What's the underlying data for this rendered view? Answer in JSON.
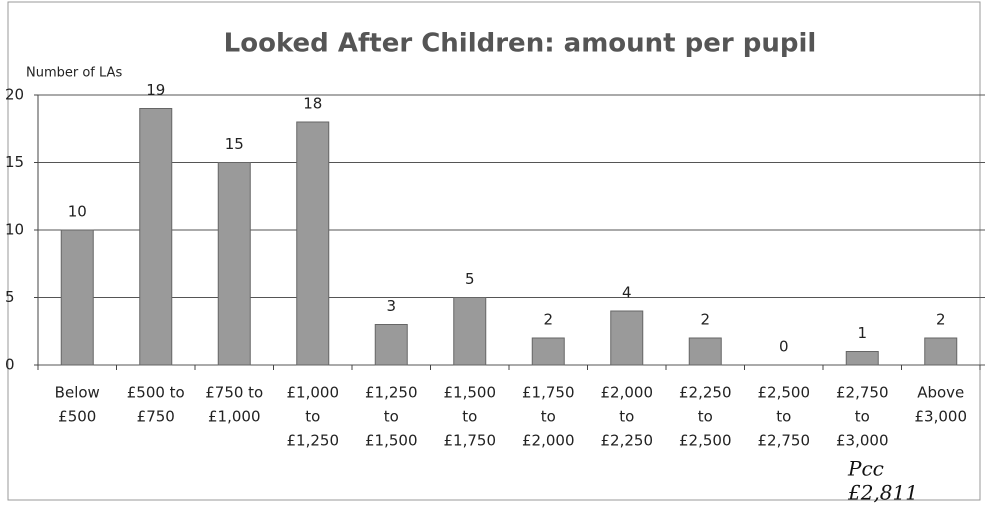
{
  "chart_data": {
    "type": "bar",
    "title": "Looked After Children: amount per pupil",
    "y_label": "Number of LAs",
    "categories": [
      [
        "Below",
        "£500"
      ],
      [
        "£500 to",
        "£750"
      ],
      [
        "£750 to",
        "£1,000"
      ],
      [
        "£1,000",
        "to",
        "£1,250"
      ],
      [
        "£1,250",
        "to",
        "£1,500"
      ],
      [
        "£1,500",
        "to",
        "£1,750"
      ],
      [
        "£1,750",
        "to",
        "£2,000"
      ],
      [
        "£2,000",
        "to",
        "£2,250"
      ],
      [
        "£2,250",
        "to",
        "£2,500"
      ],
      [
        "£2,500",
        "to",
        "£2,750"
      ],
      [
        "£2,750",
        "to",
        "£3,000"
      ],
      [
        "Above",
        "£3,000"
      ]
    ],
    "values": [
      10,
      19,
      15,
      18,
      3,
      5,
      2,
      4,
      2,
      0,
      1,
      2
    ],
    "color": "#9a9a9a",
    "ylim": [
      0,
      20
    ],
    "yticks": [
      0,
      5,
      10,
      15,
      20
    ],
    "grid": true,
    "annotation": [
      "Pcc",
      "£2,811"
    ]
  }
}
